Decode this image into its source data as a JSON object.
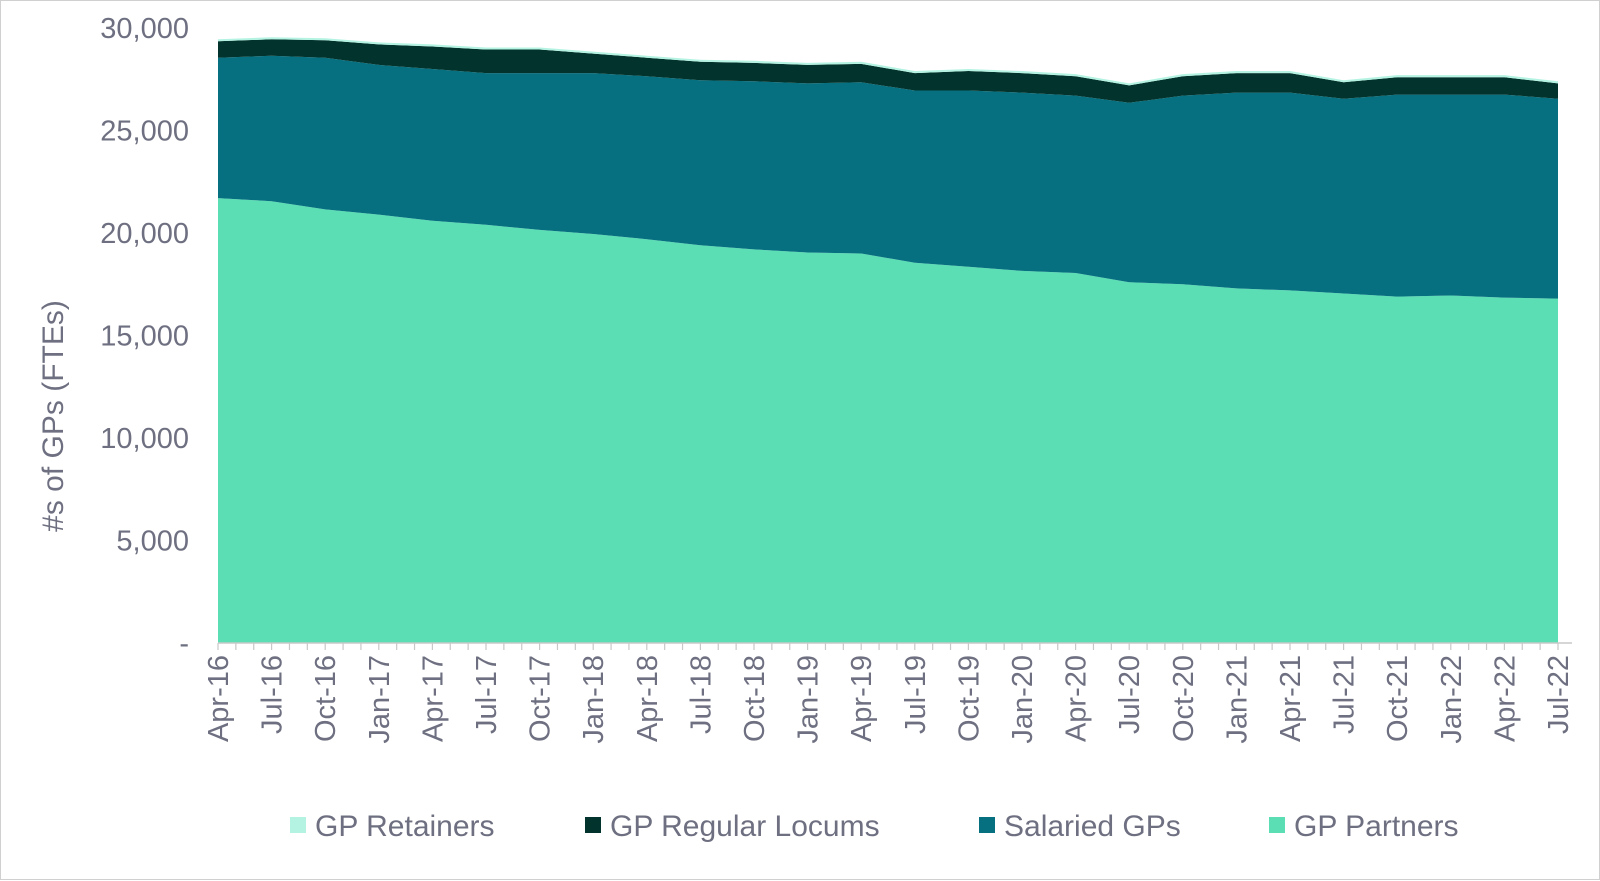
{
  "chart_data": {
    "type": "area",
    "stacked": true,
    "ylabel": "#s of GPs (FTEs)",
    "ylim": [
      0,
      30000
    ],
    "y_ticks": [
      {
        "value": 0,
        "label": "-"
      },
      {
        "value": 5000,
        "label": "5,000"
      },
      {
        "value": 10000,
        "label": "10,000"
      },
      {
        "value": 15000,
        "label": "15,000"
      },
      {
        "value": 20000,
        "label": "20,000"
      },
      {
        "value": 25000,
        "label": "25,000"
      },
      {
        "value": 30000,
        "label": "30,000"
      }
    ],
    "x_tick_labels": [
      "Apr-16",
      "Jul-16",
      "Oct-16",
      "Jan-17",
      "Apr-17",
      "Jul-17",
      "Oct-17",
      "Jan-18",
      "Apr-18",
      "Jul-18",
      "Oct-18",
      "Jan-19",
      "Apr-19",
      "Jul-19",
      "Oct-19",
      "Jan-20",
      "Apr-20",
      "Jul-20",
      "Oct-20",
      "Jan-21",
      "Apr-21",
      "Jul-21",
      "Oct-21",
      "Jan-22",
      "Apr-22",
      "Jul-22"
    ],
    "legend_position": "bottom",
    "grid": false,
    "series": [
      {
        "name": "GP Partners",
        "color": "#5cdeb5",
        "values": [
          21700,
          21550,
          21150,
          20900,
          20600,
          20400,
          20150,
          19950,
          19700,
          19400,
          19200,
          19050,
          19000,
          18550,
          18350,
          18150,
          18050,
          17600,
          17500,
          17300,
          17200,
          17050,
          16900,
          16950,
          16850,
          16800
        ]
      },
      {
        "name": "Salaried GPs",
        "color": "#077080",
        "values": [
          6850,
          7100,
          7400,
          7300,
          7400,
          7400,
          7650,
          7850,
          7950,
          8050,
          8200,
          8250,
          8350,
          8400,
          8600,
          8700,
          8650,
          8750,
          9200,
          9550,
          9650,
          9500,
          9850,
          9800,
          9900,
          9750
        ]
      },
      {
        "name": "GP Regular Locums",
        "color": "#02332c",
        "values": [
          800,
          800,
          850,
          1000,
          1100,
          1150,
          1150,
          950,
          900,
          900,
          900,
          900,
          900,
          850,
          950,
          950,
          950,
          850,
          950,
          950,
          950,
          800,
          850,
          850,
          850,
          750
        ]
      },
      {
        "name": "GP Retainers",
        "color": "#b4f3e2",
        "values": [
          100,
          100,
          100,
          100,
          100,
          100,
          100,
          100,
          100,
          100,
          100,
          100,
          100,
          100,
          100,
          100,
          100,
          100,
          100,
          100,
          100,
          100,
          100,
          100,
          100,
          100
        ]
      }
    ],
    "legend_order": [
      "GP Retainers",
      "GP Regular Locums",
      "Salaried GPs",
      "GP Partners"
    ]
  }
}
